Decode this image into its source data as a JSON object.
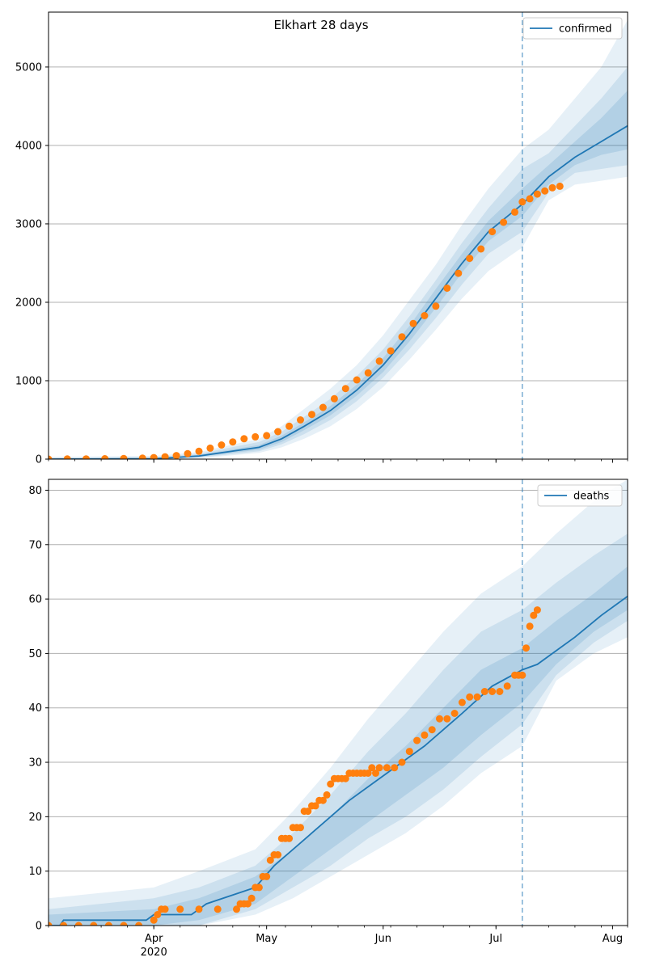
{
  "title": "Elkhart 28 days",
  "colors": {
    "model": "#1f77b4",
    "observed": "#ff7f0e",
    "grid": "#b0b0b0",
    "vline": "#1f77b4"
  },
  "chart_data": [
    {
      "type": "line",
      "name": "confirmed",
      "legend": "confirmed",
      "legend_position": "top-right",
      "title": "Elkhart 28 days",
      "x_range_days": [
        0,
        154
      ],
      "ylim": [
        0,
        5700
      ],
      "yticks": [
        0,
        1000,
        2000,
        3000,
        4000,
        5000
      ],
      "grid": "y",
      "forecast_start_day": 126,
      "model_median": {
        "x": [
          0,
          28,
          40,
          56,
          62,
          68,
          75,
          82,
          89,
          96,
          103,
          110,
          117,
          126,
          133,
          140,
          147,
          154
        ],
        "y": [
          0,
          5,
          40,
          150,
          260,
          420,
          620,
          880,
          1200,
          1600,
          2050,
          2500,
          2900,
          3250,
          3600,
          3850,
          4050,
          4250
        ]
      },
      "bands": [
        {
          "label": "outer",
          "x": [
            0,
            28,
            40,
            56,
            62,
            68,
            75,
            82,
            89,
            96,
            103,
            110,
            117,
            126,
            133,
            140,
            147,
            154
          ],
          "low": [
            0,
            0,
            10,
            80,
            150,
            260,
            420,
            640,
            920,
            1270,
            1650,
            2050,
            2400,
            2700,
            3300,
            3500,
            3550,
            3600
          ],
          "high": [
            30,
            40,
            90,
            260,
            420,
            640,
            900,
            1200,
            1580,
            2030,
            2480,
            2990,
            3450,
            3950,
            4200,
            4600,
            5000,
            5600
          ]
        },
        {
          "label": "middle",
          "x": [
            0,
            28,
            40,
            56,
            62,
            68,
            75,
            82,
            89,
            96,
            103,
            110,
            117,
            126,
            133,
            140,
            147,
            154
          ],
          "low": [
            0,
            0,
            20,
            100,
            190,
            320,
            500,
            740,
            1040,
            1400,
            1800,
            2230,
            2620,
            2900,
            3400,
            3650,
            3700,
            3750
          ],
          "high": [
            15,
            25,
            70,
            220,
            350,
            540,
            770,
            1060,
            1400,
            1820,
            2280,
            2760,
            3200,
            3700,
            3900,
            4250,
            4600,
            5000
          ]
        },
        {
          "label": "inner",
          "x": [
            0,
            28,
            40,
            56,
            62,
            68,
            75,
            82,
            89,
            96,
            103,
            110,
            117,
            126,
            133,
            140,
            147,
            154
          ],
          "low": [
            0,
            2,
            30,
            120,
            220,
            370,
            560,
            810,
            1110,
            1500,
            1930,
            2380,
            2780,
            3100,
            3500,
            3750,
            3880,
            3950
          ],
          "high": [
            8,
            15,
            55,
            180,
            300,
            470,
            680,
            950,
            1290,
            1700,
            2170,
            2620,
            3040,
            3450,
            3750,
            4050,
            4350,
            4700
          ]
        }
      ],
      "observed": {
        "x": [
          0,
          5,
          10,
          15,
          20,
          25,
          28,
          31,
          34,
          37,
          40,
          43,
          46,
          49,
          52,
          55,
          58,
          61,
          64,
          67,
          70,
          73,
          76,
          79,
          82,
          85,
          88,
          91,
          94,
          97,
          100,
          103,
          106,
          109,
          112,
          115,
          118,
          121,
          124,
          126,
          128,
          130,
          132,
          134,
          136
        ],
        "y": [
          0,
          2,
          3,
          5,
          8,
          12,
          20,
          30,
          45,
          70,
          100,
          140,
          180,
          220,
          260,
          285,
          300,
          350,
          420,
          500,
          570,
          660,
          770,
          900,
          1010,
          1100,
          1250,
          1380,
          1560,
          1730,
          1830,
          1950,
          2180,
          2370,
          2560,
          2680,
          2900,
          3020,
          3150,
          3280,
          3320,
          3380,
          3420,
          3460,
          3480
        ]
      },
      "x_tick_labels": [],
      "y_tick_labels": [
        "0",
        "1000",
        "2000",
        "3000",
        "4000",
        "5000"
      ]
    },
    {
      "type": "line",
      "name": "deaths",
      "legend": "deaths",
      "legend_position": "top-right",
      "x_range_days": [
        0,
        154
      ],
      "ylim": [
        0,
        82
      ],
      "yticks": [
        0,
        10,
        20,
        30,
        40,
        50,
        60,
        70,
        80
      ],
      "grid": "y",
      "forecast_start_day": 126,
      "model_median": {
        "x": [
          0,
          3,
          4,
          26,
          28,
          38,
          42,
          55,
          60,
          70,
          80,
          90,
          100,
          110,
          118,
          126,
          130,
          140,
          147,
          154
        ],
        "y": [
          0,
          0,
          1,
          1,
          2,
          2,
          4,
          7,
          11,
          17,
          23,
          28,
          33,
          39,
          44,
          47,
          48,
          53,
          57,
          60.5
        ]
      },
      "bands": [
        {
          "label": "outer",
          "x": [
            0,
            28,
            40,
            55,
            65,
            75,
            85,
            95,
            105,
            115,
            126,
            135,
            145,
            154
          ],
          "low": [
            0,
            0,
            0,
            2,
            5,
            9,
            13,
            17,
            22,
            28,
            33,
            45,
            50,
            53
          ],
          "high": [
            5,
            7,
            10,
            14,
            21,
            29,
            38,
            46,
            54,
            61,
            66,
            72,
            78,
            82
          ]
        },
        {
          "label": "middle",
          "x": [
            0,
            28,
            40,
            55,
            65,
            75,
            85,
            95,
            105,
            115,
            126,
            135,
            145,
            154
          ],
          "low": [
            0,
            0,
            0,
            3,
            7,
            11,
            16,
            20,
            25,
            31,
            37,
            46,
            52,
            56
          ],
          "high": [
            3,
            5,
            7,
            11,
            17,
            24,
            32,
            39,
            47,
            54,
            58,
            63,
            68,
            72
          ]
        },
        {
          "label": "inner",
          "x": [
            0,
            28,
            40,
            55,
            65,
            75,
            85,
            95,
            105,
            115,
            126,
            135,
            145,
            154
          ],
          "low": [
            0,
            0,
            1,
            4,
            9,
            14,
            19,
            24,
            29,
            35,
            41,
            48,
            54,
            58
          ],
          "high": [
            2,
            3,
            5,
            9,
            14,
            20,
            27,
            33,
            40,
            47,
            51,
            56,
            61,
            66
          ]
        }
      ],
      "observed": {
        "x": [
          0,
          4,
          8,
          12,
          16,
          20,
          24,
          28,
          29,
          30,
          31,
          35,
          40,
          45,
          50,
          51,
          52,
          53,
          54,
          55,
          56,
          57,
          58,
          59,
          60,
          61,
          62,
          63,
          64,
          65,
          66,
          67,
          68,
          69,
          70,
          71,
          72,
          73,
          74,
          75,
          76,
          77,
          78,
          79,
          80,
          81,
          82,
          83,
          84,
          85,
          86,
          87,
          88,
          90,
          92,
          94,
          96,
          98,
          100,
          102,
          104,
          106,
          108,
          110,
          112,
          114,
          116,
          118,
          120,
          122,
          124,
          125,
          126,
          127,
          128,
          129,
          130
        ],
        "y": [
          0,
          0,
          0,
          0,
          0,
          0,
          0,
          1,
          2,
          3,
          3,
          3,
          3,
          3,
          3,
          4,
          4,
          4,
          5,
          7,
          7,
          9,
          9,
          12,
          13,
          13,
          16,
          16,
          16,
          18,
          18,
          18,
          21,
          21,
          22,
          22,
          23,
          23,
          24,
          26,
          27,
          27,
          27,
          27,
          28,
          28,
          28,
          28,
          28,
          28,
          29,
          28,
          29,
          29,
          29,
          30,
          32,
          34,
          35,
          36,
          38,
          38,
          39,
          41,
          42,
          42,
          43,
          43,
          43,
          44,
          46,
          46,
          46,
          51,
          55,
          57,
          58
        ]
      },
      "x_tick_labels": [
        "Apr\n2020",
        "May",
        "Jun",
        "Jul",
        "Aug"
      ],
      "y_tick_labels": [
        "0",
        "10",
        "20",
        "30",
        "40",
        "50",
        "60",
        "70",
        "80"
      ]
    }
  ],
  "x_axis": {
    "month_ticks": [
      {
        "day": 28,
        "label": "Apr",
        "sublabel": "2020"
      },
      {
        "day": 58,
        "label": "May",
        "sublabel": ""
      },
      {
        "day": 89,
        "label": "Jun",
        "sublabel": ""
      },
      {
        "day": 119,
        "label": "Jul",
        "sublabel": ""
      },
      {
        "day": 150,
        "label": "Aug",
        "sublabel": ""
      }
    ]
  }
}
